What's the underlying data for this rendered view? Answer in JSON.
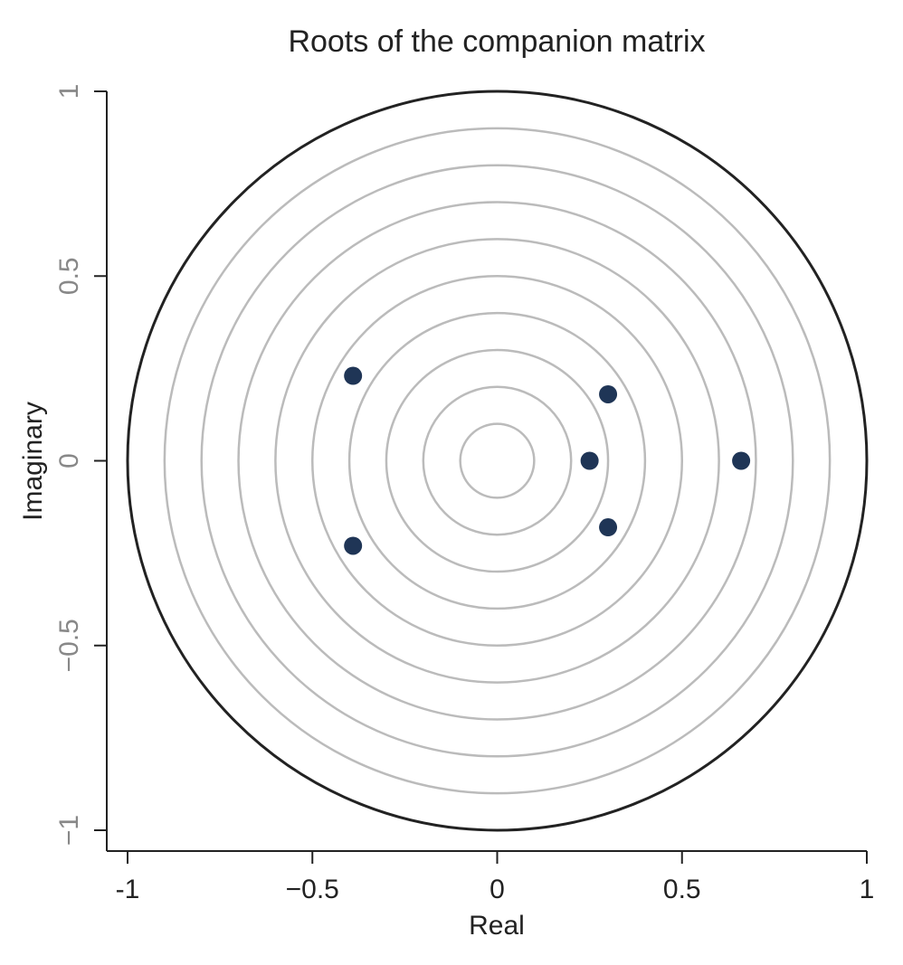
{
  "chart_data": {
    "type": "scatter",
    "title": "Roots of the companion matrix",
    "x_label": "Real",
    "y_label": "Imaginary",
    "x": [
      -0.39,
      -0.39,
      0.3,
      0.3,
      0.25,
      0.66
    ],
    "values": [
      0.23,
      -0.23,
      0.18,
      -0.18,
      0,
      0
    ],
    "color": "#1f3556",
    "rings": [
      0.1,
      0.2,
      0.3,
      0.4,
      0.5,
      0.6,
      0.7,
      0.8,
      0.9,
      1
    ],
    "xlim": [
      -1,
      1
    ],
    "ylim": [
      -1,
      1
    ],
    "xticks": [
      -1,
      {
        "value": -0.5,
        "label": "−0.5"
      },
      0,
      0.5,
      1
    ],
    "yticks": [
      {
        "value": -1,
        "label": "−1"
      },
      {
        "value": -0.5,
        "label": "−0.5"
      },
      0,
      0.5,
      1
    ]
  }
}
